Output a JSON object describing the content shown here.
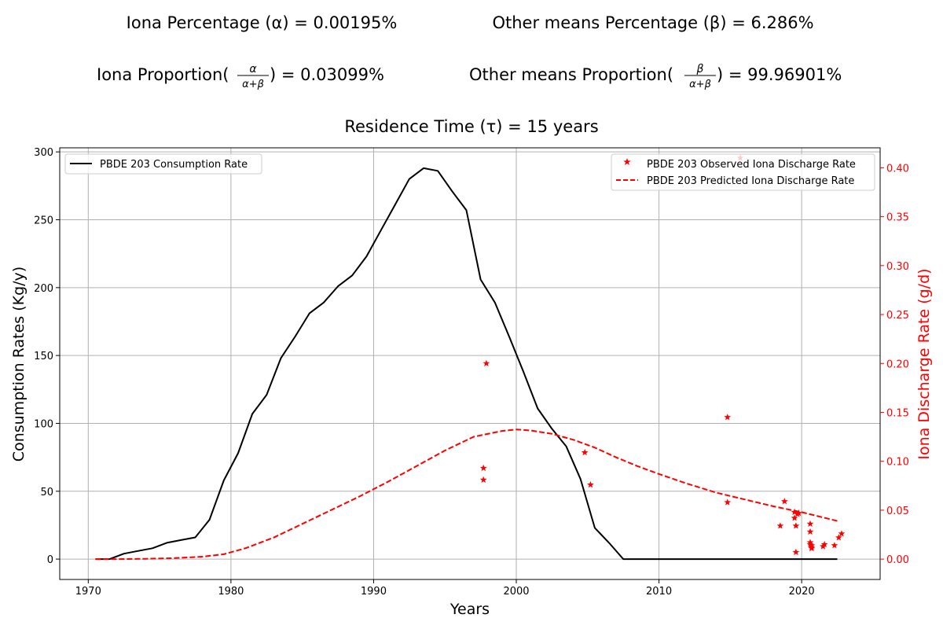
{
  "header": {
    "alpha_text": "Iona Percentage (α) = 0.00195%",
    "beta_text": "Other means Percentage (β) = 6.286%",
    "iona_prop_prefix": "Iona Proportion(",
    "iona_prop_value": ") = 0.03099%",
    "other_prop_prefix": "Other means Proportion(",
    "other_prop_value": ") = 99.96901%",
    "residence_text": "Residence Time (τ) = 15 years"
  },
  "colors": {
    "consumption": "#000000",
    "discharge": "#ff0000",
    "grid": "#b0b0b0"
  },
  "chart_data": {
    "type": "line",
    "xlabel": "Years",
    "ylabel_left": "Consumption Rates (Kg/y)",
    "ylabel_right": "Iona Discharge Rate (g/d)",
    "xlim": [
      1968,
      2025.5
    ],
    "ylim_left": [
      -15,
      303
    ],
    "ylim_right": [
      -0.0208,
      0.4204
    ],
    "xticks": [
      1970,
      1980,
      1990,
      2000,
      2010,
      2020
    ],
    "yticks_left": [
      0,
      50,
      100,
      150,
      200,
      250,
      300
    ],
    "yticks_right": [
      0.0,
      0.05,
      0.1,
      0.15,
      0.2,
      0.25,
      0.3,
      0.35,
      0.4
    ],
    "grid": true,
    "legend_left": {
      "placement": "top-left",
      "entries": [
        "PBDE 203 Consumption Rate"
      ]
    },
    "legend_right": {
      "placement": "top-right",
      "entries": [
        "PBDE 203 Observed Iona Discharge Rate",
        "PBDE 203 Predicted Iona Discharge Rate"
      ]
    },
    "series": [
      {
        "name": "PBDE 203 Consumption Rate",
        "axis": "left",
        "style": "solid",
        "x": [
          1970.5,
          1971.5,
          1972.5,
          1973.5,
          1974.5,
          1975.5,
          1976.5,
          1977.5,
          1978.5,
          1979.5,
          1980.5,
          1981.5,
          1982.5,
          1983.5,
          1984.5,
          1985.5,
          1986.5,
          1987.5,
          1988.5,
          1989.5,
          1990.5,
          1991.5,
          1992.5,
          1993.5,
          1994.5,
          1995.5,
          1996.5,
          1997.5,
          1998.5,
          1999.5,
          2000.5,
          2001.5,
          2002.5,
          2003.5,
          2004.5,
          2005.5,
          2006.5,
          2007.5,
          2008.5,
          2010,
          2015,
          2020,
          2022.5
        ],
        "y": [
          0,
          0,
          4,
          6,
          8,
          12,
          14,
          16,
          29,
          58,
          78,
          107,
          121,
          148,
          164,
          181,
          189,
          201,
          209,
          223,
          242,
          261,
          280,
          288,
          286,
          271,
          257,
          206,
          189,
          164,
          138,
          111,
          96,
          83,
          59,
          23,
          12,
          0,
          0,
          0,
          0,
          0,
          0
        ]
      },
      {
        "name": "PBDE 203 Observed Iona Discharge Rate",
        "axis": "right",
        "style": "star",
        "x": [
          1997.7,
          1997.7,
          1997.9,
          2004.8,
          2005.2,
          2014.8,
          2014.8,
          2015.7,
          2018.5,
          2018.8,
          2019.5,
          2019.5,
          2019.6,
          2019.6,
          2019.7,
          2019.8,
          2020.6,
          2020.6,
          2020.6,
          2020.6,
          2020.7,
          2020.7,
          2020.7,
          2021.5,
          2021.6,
          2022.3,
          2022.6,
          2022.8
        ],
        "y": [
          0.081,
          0.093,
          0.2,
          0.109,
          0.076,
          0.145,
          0.058,
          0.41,
          0.034,
          0.059,
          0.048,
          0.042,
          0.034,
          0.007,
          0.046,
          0.047,
          0.036,
          0.028,
          0.017,
          0.015,
          0.014,
          0.012,
          0.011,
          0.013,
          0.015,
          0.014,
          0.022,
          0.026
        ]
      },
      {
        "name": "PBDE 203 Predicted Iona Discharge Rate",
        "axis": "right",
        "style": "dashed",
        "x": [
          1970.5,
          1972,
          1974,
          1976,
          1978,
          1979.5,
          1981,
          1983,
          1985,
          1987,
          1989,
          1991,
          1993,
          1995,
          1997,
          1999,
          2000,
          2001,
          2002.5,
          2004,
          2005.5,
          2007,
          2008.5,
          2010,
          2012,
          2014,
          2016,
          2018,
          2020,
          2022.5
        ],
        "y": [
          0,
          0,
          0.0003,
          0.001,
          0.0025,
          0.005,
          0.011,
          0.022,
          0.036,
          0.05,
          0.064,
          0.079,
          0.095,
          0.111,
          0.125,
          0.131,
          0.1325,
          0.1315,
          0.128,
          0.122,
          0.114,
          0.104,
          0.095,
          0.087,
          0.077,
          0.068,
          0.061,
          0.054,
          0.048,
          0.039
        ]
      }
    ]
  }
}
